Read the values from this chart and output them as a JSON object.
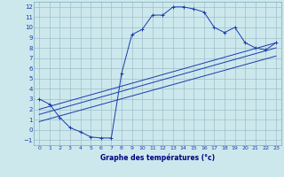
{
  "xlabel": "Graphe des températures (°c)",
  "bg_color": "#cce8ed",
  "grid_color": "#9dbfc8",
  "line_color": "#1a3aab",
  "xlim": [
    -0.5,
    23.5
  ],
  "ylim": [
    -1.5,
    12.5
  ],
  "xticks": [
    0,
    1,
    2,
    3,
    4,
    5,
    6,
    7,
    8,
    9,
    10,
    11,
    12,
    13,
    14,
    15,
    16,
    17,
    18,
    19,
    20,
    21,
    22,
    23
  ],
  "yticks": [
    -1,
    0,
    1,
    2,
    3,
    4,
    5,
    6,
    7,
    8,
    9,
    10,
    11,
    12
  ],
  "main_curve_x": [
    0,
    1,
    2,
    3,
    4,
    5,
    6,
    7,
    8,
    9,
    10,
    11,
    12,
    13,
    14,
    15,
    16,
    17,
    18,
    19,
    20,
    21,
    22,
    23
  ],
  "main_curve_y": [
    3.0,
    2.5,
    1.2,
    0.2,
    -0.2,
    -0.7,
    -0.8,
    -0.8,
    5.5,
    9.3,
    9.8,
    11.2,
    11.2,
    12.0,
    12.0,
    11.8,
    11.5,
    10.0,
    9.5,
    10.0,
    8.5,
    8.0,
    7.8,
    8.5
  ],
  "line1_x": [
    0,
    23
  ],
  "line1_y": [
    2.0,
    8.5
  ],
  "line2_x": [
    0,
    23
  ],
  "line2_y": [
    1.5,
    8.0
  ],
  "line3_x": [
    0,
    23
  ],
  "line3_y": [
    0.8,
    7.2
  ],
  "marker": "+",
  "lw": 0.7
}
